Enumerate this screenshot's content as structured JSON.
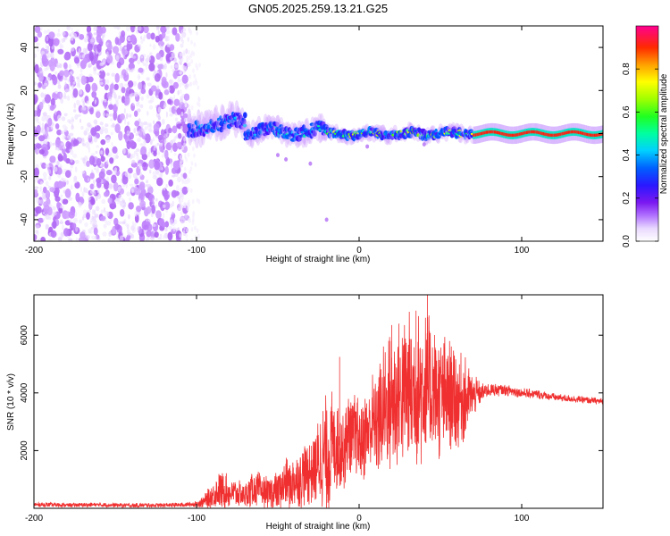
{
  "title": "GN05.2025.259.13.21.G25",
  "chart_data": [
    {
      "type": "heatmap",
      "title": "GN05.2025.259.13.21.G25",
      "xlabel": "Height of straight line (km)",
      "ylabel": "Frequency (Hz)",
      "xlim": [
        -200,
        150
      ],
      "ylim": [
        -50,
        50
      ],
      "xticks": [
        -200,
        -100,
        0,
        100
      ],
      "yticks": [
        -40,
        -20,
        0,
        20,
        40
      ],
      "colorbar": {
        "label": "Normalized spectral amplitude",
        "range": [
          0,
          1
        ],
        "ticks": [
          0.0,
          0.2,
          0.4,
          0.6,
          0.8
        ],
        "colormap": [
          "#ffffff",
          "#ece0ff",
          "#c890ff",
          "#8a2be2",
          "#3a10ff",
          "#0050ff",
          "#00c8ff",
          "#00ff80",
          "#40ff00",
          "#c8ff00",
          "#ffff00",
          "#ffa000",
          "#ff2000",
          "#ff0080"
        ]
      },
      "regions": [
        {
          "x_from": -200,
          "x_to": -105,
          "freq_from": -50,
          "freq_to": 50,
          "amplitude": 0.08,
          "description": "broadband noise"
        },
        {
          "x_from": -105,
          "x_to": -70,
          "freq_center": 4,
          "freq_halfwidth": 8,
          "amplitude": 0.45
        },
        {
          "x_from": -70,
          "x_to": -20,
          "freq_center": 1,
          "freq_halfwidth": 6,
          "amplitude": 0.5
        },
        {
          "x_from": -20,
          "x_to": 70,
          "freq_center": 0,
          "freq_halfwidth": 4,
          "amplitude": 0.75
        },
        {
          "x_from": 70,
          "x_to": 150,
          "freq_center": 0,
          "freq_halfwidth": 1,
          "amplitude": 0.95
        }
      ]
    },
    {
      "type": "line",
      "xlabel": "Height of straight line (km)",
      "ylabel": "SNR (10 * v/v)",
      "xlim": [
        -200,
        150
      ],
      "ylim": [
        0,
        7400
      ],
      "xticks": [
        -200,
        -100,
        0,
        100
      ],
      "yticks": [
        2000,
        4000,
        6000
      ],
      "color": "#f03030",
      "series": [
        {
          "name": "SNR",
          "x": [
            -200,
            -180,
            -160,
            -140,
            -120,
            -110,
            -100,
            -95,
            -90,
            -85,
            -80,
            -75,
            -70,
            -65,
            -60,
            -55,
            -50,
            -45,
            -40,
            -35,
            -30,
            -25,
            -20,
            -15,
            -10,
            -5,
            0,
            5,
            10,
            15,
            20,
            25,
            30,
            35,
            40,
            45,
            50,
            55,
            60,
            65,
            70,
            75,
            80,
            90,
            100,
            110,
            120,
            130,
            140,
            150
          ],
          "mean": [
            130,
            110,
            120,
            100,
            110,
            120,
            150,
            250,
            450,
            650,
            550,
            500,
            450,
            700,
            600,
            550,
            650,
            850,
            900,
            1100,
            1300,
            1600,
            1900,
            2300,
            2100,
            2600,
            2300,
            2700,
            3000,
            3400,
            3700,
            3900,
            4100,
            4000,
            4200,
            4000,
            3900,
            4000,
            3800,
            3800,
            3900,
            4000,
            4100,
            4100,
            4000,
            3950,
            3850,
            3800,
            3750,
            3700
          ],
          "spread": [
            80,
            80,
            80,
            80,
            80,
            80,
            100,
            250,
            500,
            700,
            600,
            500,
            450,
            700,
            600,
            550,
            700,
            900,
            900,
            1100,
            1200,
            1600,
            2200,
            1800,
            1600,
            1600,
            1500,
            1700,
            2000,
            2300,
            2600,
            2700,
            2800,
            2800,
            2800,
            2500,
            2300,
            2000,
            1800,
            1500,
            800,
            350,
            250,
            200,
            180,
            160,
            140,
            130,
            120,
            120
          ],
          "peaks": [
            {
              "x": -12,
              "value": 5250
            },
            {
              "x": 42,
              "value": 7400
            },
            {
              "x": 35,
              "value": 6850
            },
            {
              "x": 20,
              "value": 6350
            }
          ]
        }
      ]
    }
  ]
}
